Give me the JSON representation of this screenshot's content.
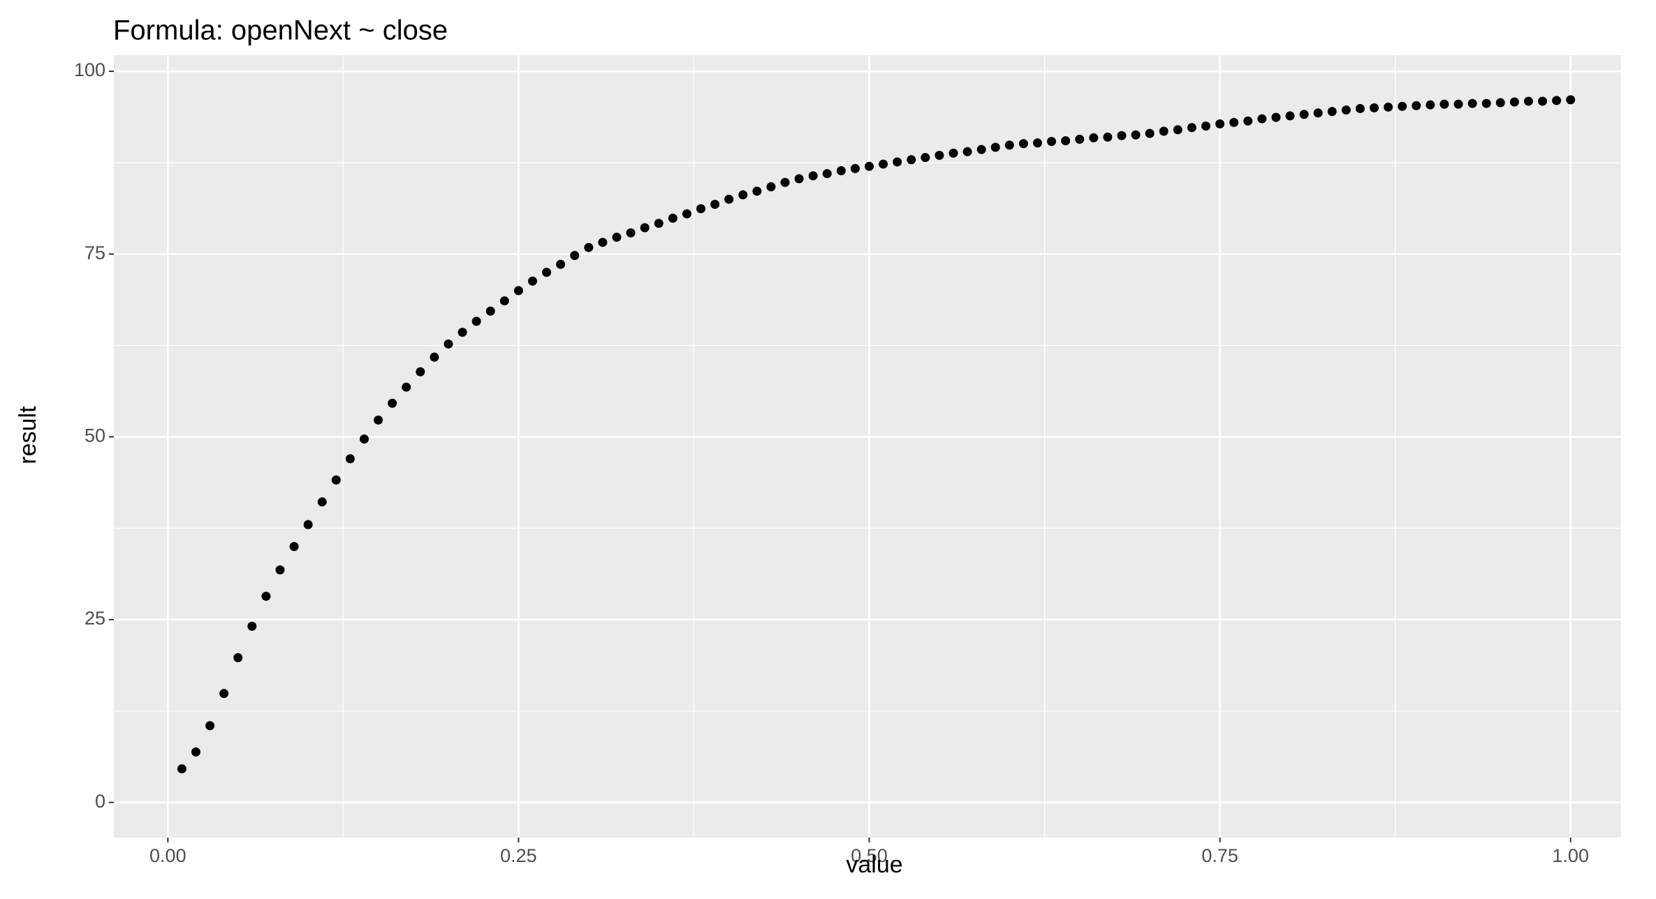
{
  "chart_data": {
    "type": "scatter",
    "title": "Formula:  openNext ~ close",
    "x_label": "value",
    "y_label": "result",
    "color": "#000000",
    "grid": true,
    "xlim": [
      -0.0385,
      1.036
    ],
    "ylim": [
      -4.8,
      102.2
    ],
    "xticks": [
      {
        "value": 0,
        "label": "0.00"
      },
      {
        "value": 0.25,
        "label": "0.25"
      },
      {
        "value": 0.5,
        "label": "0.50"
      },
      {
        "value": 0.75,
        "label": "0.75"
      },
      {
        "value": 1,
        "label": "1.00"
      }
    ],
    "yticks": [
      0,
      25,
      50,
      75,
      100
    ],
    "x_minor_breaks": [
      0.125,
      0.375,
      0.625,
      0.875
    ],
    "y_minor_breaks": [
      12.5,
      37.5,
      62.5,
      87.5
    ],
    "x": [
      0.01,
      0.02,
      0.03,
      0.04,
      0.05,
      0.06,
      0.07,
      0.08,
      0.09,
      0.1,
      0.11,
      0.12,
      0.13,
      0.14,
      0.15,
      0.16,
      0.17,
      0.18,
      0.19,
      0.2,
      0.21,
      0.22,
      0.23,
      0.24,
      0.25,
      0.26,
      0.27,
      0.28,
      0.29,
      0.3,
      0.31,
      0.32,
      0.33,
      0.34,
      0.35,
      0.36,
      0.37,
      0.38,
      0.39,
      0.4,
      0.41,
      0.42,
      0.43,
      0.44,
      0.45,
      0.46,
      0.47,
      0.48,
      0.49,
      0.5,
      0.51,
      0.52,
      0.53,
      0.54,
      0.55,
      0.56,
      0.57,
      0.58,
      0.59,
      0.6,
      0.61,
      0.62,
      0.63,
      0.64,
      0.65,
      0.66,
      0.67,
      0.68,
      0.69,
      0.7,
      0.71,
      0.72,
      0.73,
      0.74,
      0.75,
      0.76,
      0.77,
      0.78,
      0.79,
      0.8,
      0.81,
      0.82,
      0.83,
      0.84,
      0.85,
      0.86,
      0.87,
      0.88,
      0.89,
      0.9,
      0.91,
      0.92,
      0.93,
      0.94,
      0.95,
      0.96,
      0.97,
      0.98,
      0.99,
      1.0
    ],
    "values": [
      4.6,
      6.9,
      10.5,
      14.9,
      19.8,
      24.1,
      28.2,
      31.8,
      35.0,
      38.0,
      41.1,
      44.1,
      47.0,
      49.7,
      52.3,
      54.6,
      56.8,
      58.9,
      60.9,
      62.7,
      64.3,
      65.8,
      67.2,
      68.6,
      70.0,
      71.3,
      72.5,
      73.6,
      74.8,
      75.9,
      76.6,
      77.3,
      77.9,
      78.6,
      79.2,
      79.9,
      80.5,
      81.2,
      81.8,
      82.5,
      83.1,
      83.6,
      84.2,
      84.8,
      85.3,
      85.7,
      86.0,
      86.4,
      86.7,
      87.0,
      87.3,
      87.6,
      87.9,
      88.2,
      88.5,
      88.8,
      89.0,
      89.3,
      89.6,
      89.9,
      90.1,
      90.2,
      90.4,
      90.5,
      90.7,
      90.9,
      91.0,
      91.2,
      91.3,
      91.5,
      91.8,
      92.0,
      92.3,
      92.5,
      92.8,
      93.0,
      93.2,
      93.5,
      93.7,
      93.9,
      94.1,
      94.3,
      94.5,
      94.7,
      94.9,
      95.0,
      95.1,
      95.2,
      95.3,
      95.4,
      95.5,
      95.5,
      95.6,
      95.6,
      95.7,
      95.8,
      95.9,
      95.9,
      96.0,
      96.1
    ]
  }
}
